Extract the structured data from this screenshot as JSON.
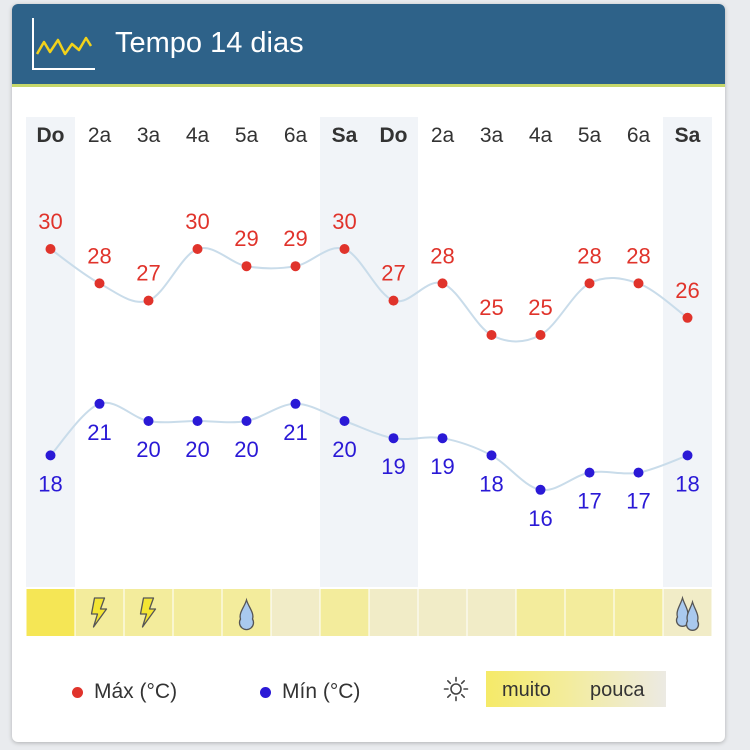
{
  "header": {
    "title": "Tempo 14 dias",
    "icon": "line-chart-icon"
  },
  "chart_data": {
    "type": "line",
    "categories": [
      "Do",
      "2a",
      "3a",
      "4a",
      "5a",
      "6a",
      "Sa",
      "Do",
      "2a",
      "3a",
      "4a",
      "5a",
      "6a",
      "Sa"
    ],
    "weekend_columns": [
      0,
      6,
      7,
      13
    ],
    "series": [
      {
        "name": "Máx (°C)",
        "color": "#e0332b",
        "values": [
          30,
          28,
          27,
          30,
          29,
          29,
          30,
          27,
          28,
          25,
          25,
          28,
          28,
          26
        ]
      },
      {
        "name": "Mín (°C)",
        "color": "#2a19d6",
        "values": [
          18,
          21,
          20,
          20,
          20,
          21,
          20,
          19,
          19,
          18,
          16,
          17,
          17,
          18
        ]
      }
    ],
    "sun": [
      3,
      2,
      2,
      2,
      2,
      1,
      2,
      1,
      1,
      1,
      2,
      2,
      2,
      1
    ],
    "sun_colors": [
      "#eceae3",
      "#f1ecc7",
      "#f3ec9c",
      "#f5e655"
    ],
    "weather_icons": [
      "",
      "thunder-icon",
      "thunder-icon",
      "",
      "raindrop-icon",
      "",
      "",
      "",
      "",
      "",
      "",
      "",
      "",
      "heavy-rain-icon"
    ],
    "line_color": "#c9dcea",
    "weekend_shade": "#f1f4f8",
    "grid": false
  },
  "legend": {
    "max_label": "Máx (°C)",
    "min_label": "Mín (°C)",
    "sun_icon": "sun-icon",
    "sun_high_label": "muito",
    "sun_low_label": "pouca"
  }
}
